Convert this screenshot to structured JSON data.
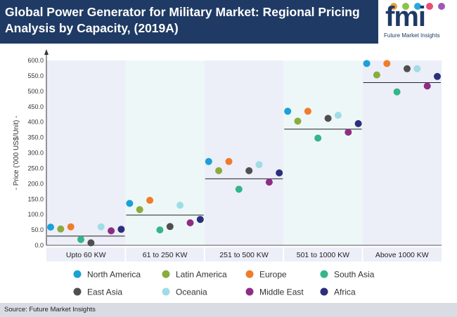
{
  "header": {
    "title": "Global Power Generator for Military Market: Regional Pricing Analysis by Capacity, (2019A)"
  },
  "logo": {
    "word": "fmi",
    "subtitle": "Future Market Insights",
    "dot_colors": [
      "#e9a23b",
      "#8bc34a",
      "#29a8e0",
      "#e94e77",
      "#9c59b6"
    ]
  },
  "footer": {
    "source": "Source: Future Market Insights"
  },
  "chart_data": {
    "type": "scatter",
    "title": "Global Power Generator for Military Market: Regional Pricing Analysis by Capacity, (2019A)",
    "ylabel": "- Price ('000 US$/Unit) -",
    "xlabel": "",
    "ylim": [
      0,
      600
    ],
    "yticks": [
      "0.0",
      "50.0",
      "100.0",
      "150.0",
      "200.0",
      "250.0",
      "300.0",
      "350.0",
      "400.0",
      "450.0",
      "500.0",
      "550.0",
      "600.0"
    ],
    "categories": [
      "Upto 60 KW",
      "61 to 250 KW",
      "251 to 500 KW",
      "501 to 1000 KW",
      "Above 1000 KW"
    ],
    "band_colors": [
      "#eceef8",
      "#eef7f7"
    ],
    "mean_line_color": "#222222",
    "averages": [
      30,
      98,
      216,
      377,
      528
    ],
    "legend_placement": "bottom",
    "series": [
      {
        "name": "North America",
        "color": "#1ba0d7",
        "values": [
          59,
          136,
          272,
          435,
          590
        ]
      },
      {
        "name": "Latin America",
        "color": "#8aac3c",
        "values": [
          53,
          116,
          242,
          403,
          553
        ]
      },
      {
        "name": "Europe",
        "color": "#f07c2a",
        "values": [
          60,
          146,
          272,
          435,
          590
        ]
      },
      {
        "name": "South Asia",
        "color": "#34b58a",
        "values": [
          19,
          50,
          182,
          348,
          498
        ]
      },
      {
        "name": "East Asia",
        "color": "#4f4f4f",
        "values": [
          8,
          61,
          242,
          412,
          573
        ]
      },
      {
        "name": "Oceania",
        "color": "#9fdde6",
        "values": [
          60,
          130,
          262,
          422,
          573
        ]
      },
      {
        "name": "Middle East",
        "color": "#8e2d84",
        "values": [
          47,
          73,
          205,
          367,
          517
        ]
      },
      {
        "name": "Africa",
        "color": "#2c2e7c",
        "values": [
          52,
          84,
          235,
          395,
          548
        ]
      }
    ]
  }
}
